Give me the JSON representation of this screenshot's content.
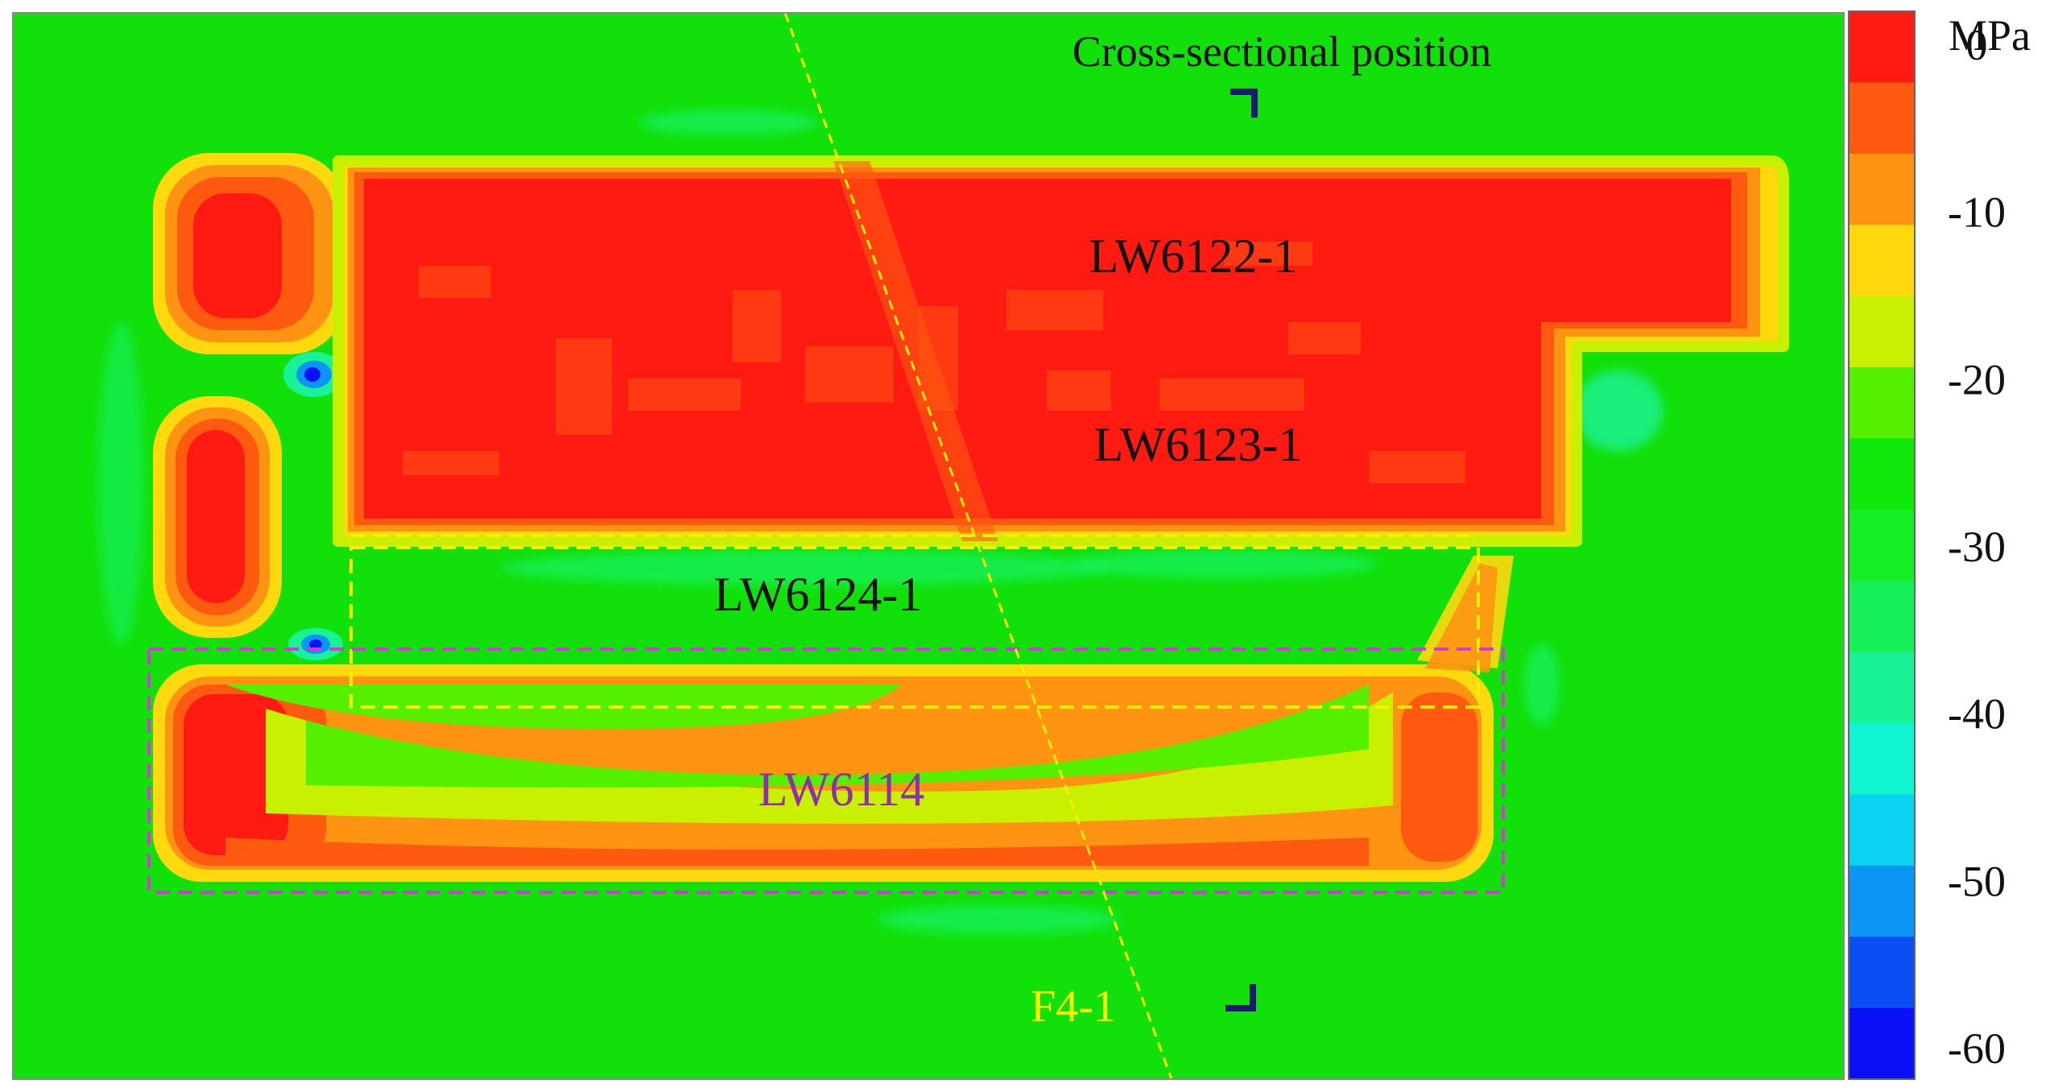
{
  "figure": {
    "cross_section_label": "Cross-sectional position",
    "panels": {
      "lw6122": "LW6122-1",
      "lw6123": "LW6123-1",
      "lw6124": "LW6124-1",
      "lw6114": "LW6114"
    },
    "fault_label": "F4-1"
  },
  "colorbar": {
    "unit": "MPa",
    "ticks": [
      "0",
      "-10",
      "-20",
      "-30",
      "-40",
      "-50",
      "-60"
    ],
    "colors": [
      "#ff1a12",
      "#ff5a10",
      "#ff9412",
      "#ffd80e",
      "#c8f000",
      "#55f000",
      "#10e80c",
      "#14ee22",
      "#18f05a",
      "#1af298",
      "#10f4d2",
      "#08d4f2",
      "#0a96f2",
      "#0a4ef6",
      "#0a10f8"
    ]
  },
  "colors": {
    "background": "#12e00a",
    "stress_red": "#ff1a12",
    "fault_line": "#ffee00",
    "lw6114_outline": "#d23cd2",
    "lw6114_text": "#8a32aa",
    "section_marker": "#1a1a6e"
  }
}
